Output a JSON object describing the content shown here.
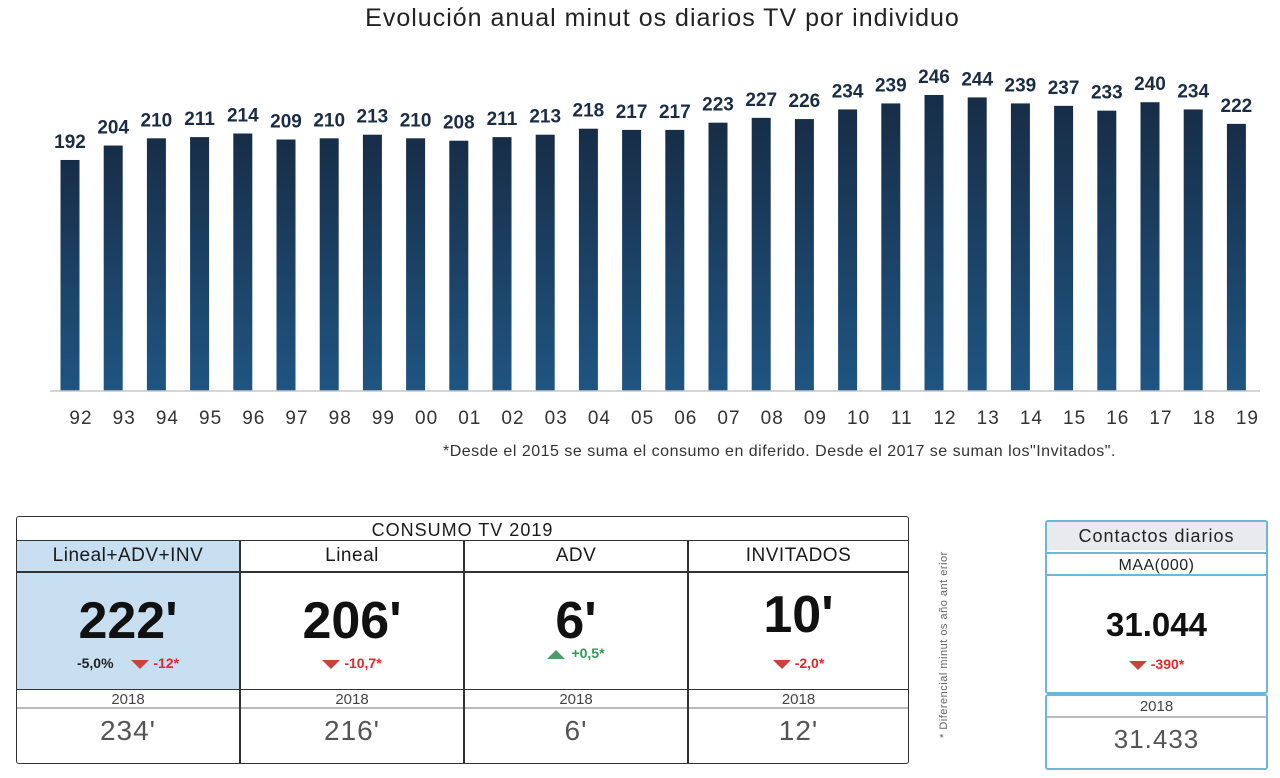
{
  "chart_data": {
    "type": "bar",
    "title": "Evolución anual minut os diarios TV por individuo",
    "categories": [
      "92",
      "93",
      "94",
      "95",
      "96",
      "97",
      "98",
      "99",
      "00",
      "01",
      "02",
      "03",
      "04",
      "05",
      "06",
      "07",
      "08",
      "09",
      "10",
      "11",
      "12",
      "13",
      "14",
      "15",
      "16",
      "17",
      "18",
      "19"
    ],
    "values": [
      192,
      204,
      210,
      211,
      214,
      209,
      210,
      213,
      210,
      208,
      211,
      213,
      218,
      217,
      217,
      223,
      227,
      226,
      234,
      239,
      246,
      244,
      239,
      237,
      233,
      240,
      234,
      222
    ],
    "ylim": [
      0,
      250
    ],
    "grid": false,
    "legend": "none",
    "bar_color": "#1b3a5c"
  },
  "footnote": "*Desde el 2015 se suma el consumo en diferido. Desde el 2017 se suman los\"Invitados\".",
  "consumo": {
    "title": "CONSUMO TV 2019",
    "columns": [
      {
        "header": "Lineal+ADV+INV",
        "value": "222'",
        "delta_pct": "-5,0%",
        "delta": "-12*",
        "trend": "down",
        "year": "2018",
        "prev": "234'"
      },
      {
        "header": "Lineal",
        "value": "206'",
        "delta_pct": "",
        "delta": "-10,7*",
        "trend": "down",
        "year": "2018",
        "prev": "216'"
      },
      {
        "header": "ADV",
        "value": "6'",
        "delta_pct": "",
        "delta": "+0,5*",
        "trend": "up",
        "year": "2018",
        "prev": "6'"
      },
      {
        "header": "INVITADOS",
        "value": "10'",
        "delta_pct": "",
        "delta": "-2,0*",
        "trend": "down",
        "year": "2018",
        "prev": "12'"
      }
    ],
    "highlight_color": "#c7dff0"
  },
  "side_note": "* Diferencial minut os año ant erior",
  "contactos": {
    "title": "Contactos diarios",
    "subtitle": "MAA(000)",
    "value": "31.044",
    "delta": "-390*",
    "trend": "down",
    "year": "2018",
    "prev": "31.433",
    "border_color": "#6ab7d6"
  }
}
